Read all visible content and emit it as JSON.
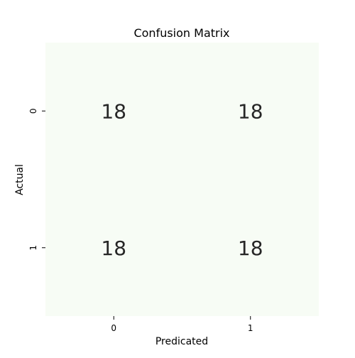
{
  "chart_data": {
    "type": "heatmap",
    "title": "Confusion Matrix",
    "xlabel": "Predicated",
    "ylabel": "Actual",
    "x_categories": [
      "0",
      "1"
    ],
    "y_categories": [
      "0",
      "1"
    ],
    "values": [
      [
        18,
        18
      ],
      [
        18,
        18
      ]
    ],
    "colorbar": false,
    "colors": {
      "cell": "#f7fcf5",
      "text": "#262626",
      "axis": "#000000"
    }
  }
}
